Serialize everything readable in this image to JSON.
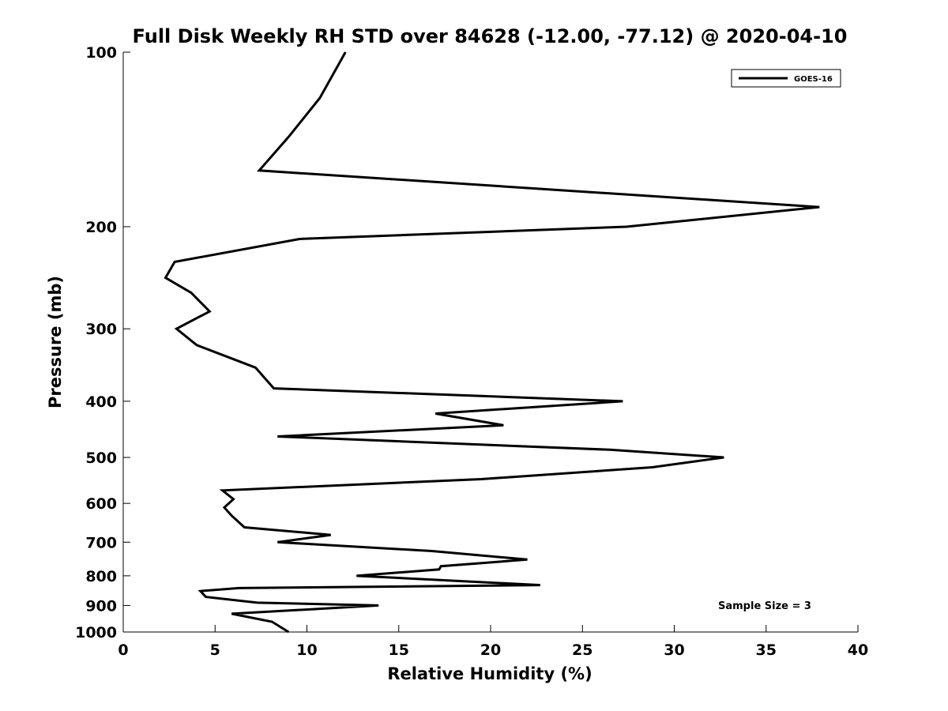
{
  "chart_data": {
    "type": "line",
    "title": "Full Disk Weekly RH STD over 84628 (-12.00, -77.12) @ 2020-04-10",
    "xlabel": "Relative Humidity (%)",
    "ylabel": "Pressure (mb)",
    "xlim": [
      0,
      40
    ],
    "ylim": [
      100,
      1000
    ],
    "y_scale": "log",
    "y_reversed": true,
    "grid": false,
    "legend_position": "top-right",
    "x_ticks": [
      0,
      5,
      10,
      15,
      20,
      25,
      30,
      35,
      40
    ],
    "y_ticks": [
      100,
      200,
      300,
      400,
      500,
      600,
      700,
      800,
      900,
      1000
    ],
    "series": [
      {
        "name": "GOES-16",
        "color": "#000000",
        "x": [
          12.1,
          10.7,
          9.0,
          7.4,
          37.9,
          27.4,
          9.6,
          2.8,
          2.3,
          3.7,
          4.7,
          2.9,
          4.0,
          7.2,
          8.2,
          27.2,
          17.0,
          20.7,
          8.4,
          26.5,
          32.7,
          28.8,
          19.5,
          5.4,
          6.0,
          5.5,
          5.9,
          6.6,
          11.3,
          8.4,
          16.8,
          22.0,
          17.3,
          17.2,
          12.7,
          22.7,
          6.3,
          4.2,
          4.5,
          7.3,
          13.9,
          5.9,
          8.1,
          9.0
        ],
        "y": [
          100,
          120,
          140,
          160,
          185,
          200,
          210,
          230,
          245,
          260,
          280,
          300,
          320,
          350,
          380,
          400,
          420,
          440,
          460,
          485,
          500,
          520,
          545,
          570,
          590,
          610,
          630,
          660,
          680,
          700,
          725,
          750,
          770,
          780,
          800,
          830,
          840,
          850,
          870,
          890,
          900,
          930,
          960,
          1000
        ]
      }
    ],
    "annotations": [
      "Sample Size = 3"
    ]
  }
}
